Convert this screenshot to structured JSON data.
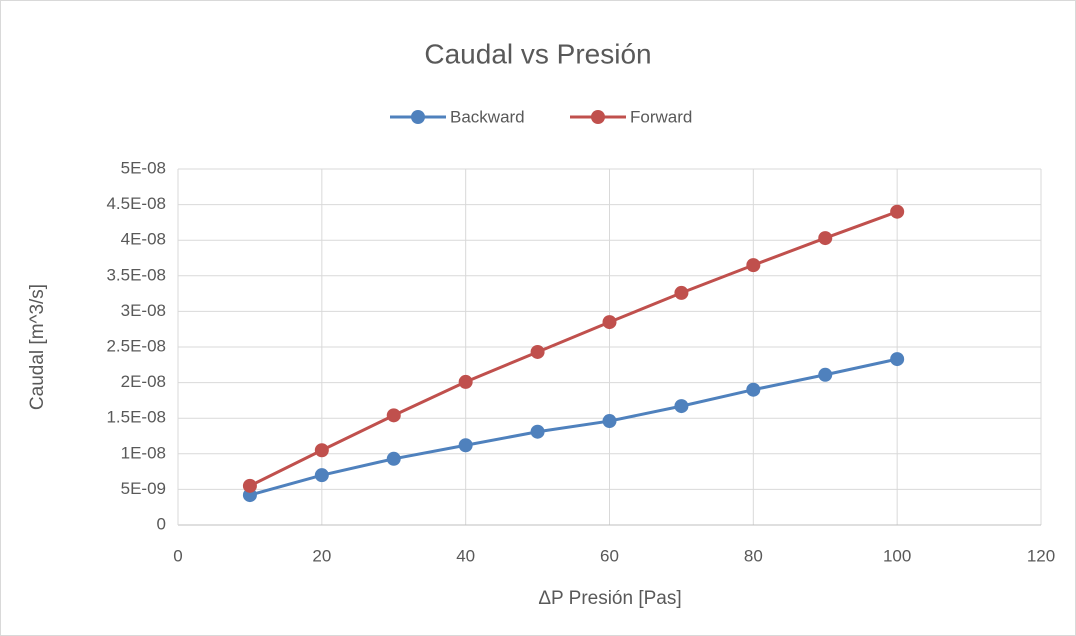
{
  "chart_data": {
    "type": "line",
    "title": "Caudal vs Presión",
    "x_label": "ΔP Presión [Pas]",
    "y_label": "Caudal [m^3/s]",
    "x": [
      10,
      20,
      30,
      40,
      50,
      60,
      70,
      80,
      90,
      100
    ],
    "series": [
      {
        "name": "Backward",
        "color": "#4f81bd",
        "values": [
          4.2e-09,
          7e-09,
          9.3e-09,
          1.12e-08,
          1.31e-08,
          1.46e-08,
          1.67e-08,
          1.9e-08,
          2.11e-08,
          2.33e-08
        ]
      },
      {
        "name": "Forward",
        "color": "#c0504d",
        "values": [
          5.5e-09,
          1.05e-08,
          1.54e-08,
          2.01e-08,
          2.43e-08,
          2.85e-08,
          3.26e-08,
          3.65e-08,
          4.03e-08,
          4.4e-08
        ]
      }
    ],
    "xlim": [
      0,
      120
    ],
    "xticks": [
      0,
      20,
      40,
      60,
      80,
      100,
      120
    ],
    "ylim": [
      0,
      5e-08
    ],
    "yticks": [
      0,
      {
        "value": 5e-09,
        "label": "5E-09"
      },
      {
        "value": 1e-08,
        "label": "1E-08"
      },
      {
        "value": 1.5e-08,
        "label": "1.5E-08"
      },
      {
        "value": 2e-08,
        "label": "2E-08"
      },
      {
        "value": 2.5e-08,
        "label": "2.5E-08"
      },
      {
        "value": 3e-08,
        "label": "3E-08"
      },
      {
        "value": 3.5e-08,
        "label": "3.5E-08"
      },
      {
        "value": 4e-08,
        "label": "4E-08"
      },
      {
        "value": 4.5e-08,
        "label": "4.5E-08"
      },
      {
        "value": 5e-08,
        "label": "5E-08"
      }
    ],
    "grid": true,
    "legend": "top"
  }
}
